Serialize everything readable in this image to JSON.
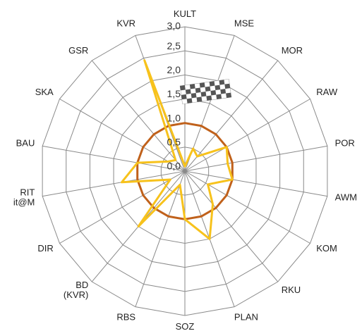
{
  "chart_data": {
    "type": "radar",
    "categories": [
      "KULT",
      "MSE",
      "MOR",
      "RAW",
      "POR",
      "AWM",
      "KOM",
      "RKU",
      "PLAN",
      "SOZ",
      "RBS",
      "BD (KVR)",
      "DIR",
      "RIT it@M",
      "BAU",
      "SKA",
      "GSR",
      "KVR"
    ],
    "rlim": [
      0,
      3
    ],
    "rticks": [
      {
        "value": 0,
        "label": "0,0"
      },
      {
        "value": 0.5,
        "label": "0,5"
      },
      {
        "value": 1,
        "label": "1,0"
      },
      {
        "value": 1.5,
        "label": "1,5"
      },
      {
        "value": 2,
        "label": "2,0"
      },
      {
        "value": 2.5,
        "label": "2,5"
      },
      {
        "value": 3,
        "label": "3,0"
      }
    ],
    "grid": true,
    "series": [
      {
        "color": "#c0611b",
        "values": [
          1,
          1,
          1,
          1,
          1,
          1,
          1,
          1,
          1,
          1,
          1,
          1,
          1,
          1,
          1,
          1,
          1,
          1
        ]
      },
      {
        "color": "#f7c21c",
        "values": [
          0.1,
          0.5,
          0.4,
          1.0,
          0.9,
          1.0,
          0.55,
          0.9,
          1.5,
          1.0,
          0.3,
          1.5,
          0.35,
          1.33,
          1.0,
          0.4,
          0.3,
          2.45
        ]
      }
    ]
  }
}
